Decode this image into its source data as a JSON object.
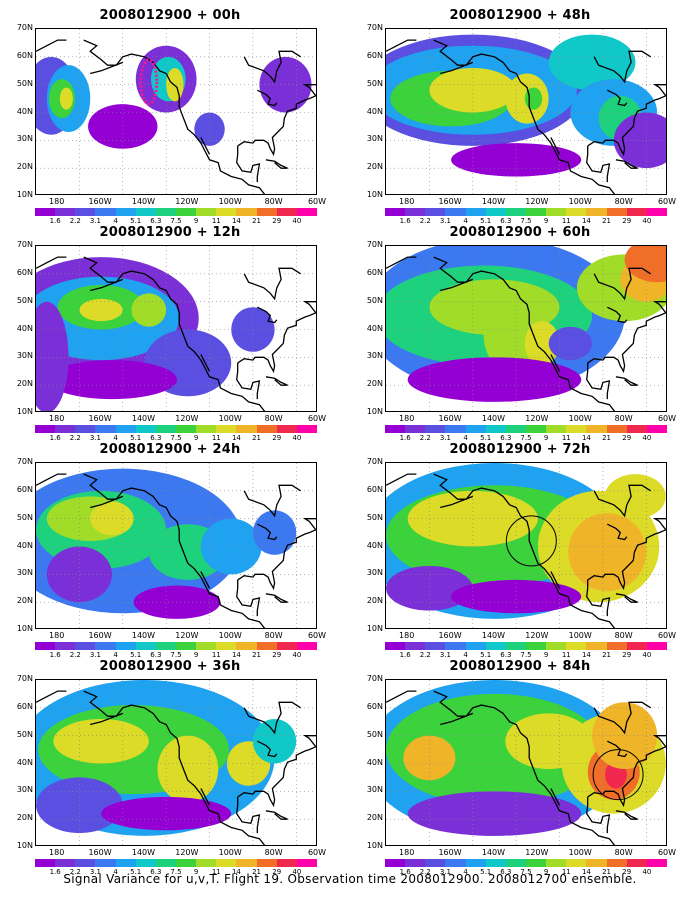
{
  "chart_data": {
    "type": "heatmap",
    "footer": "Signal Variance for u,v,T. Flight 19. Observation time 2008012900. 2008012700 ensemble.",
    "y_ticks": [
      "70N",
      "60N",
      "50N",
      "40N",
      "30N",
      "20N",
      "10N"
    ],
    "x_ticks": [
      "180",
      "160W",
      "140W",
      "120W",
      "100W",
      "80W",
      "60W"
    ],
    "colorbar_labels": [
      "1.6",
      "2.2",
      "3.1",
      "4",
      "5.1",
      "6.3",
      "7.5",
      "9",
      "11",
      "14",
      "21",
      "29",
      "40"
    ],
    "colorbar_colors": [
      "#9400d3",
      "#7b2fd6",
      "#5a4fe0",
      "#3c78f0",
      "#1fa2f0",
      "#10c8c8",
      "#1ed27d",
      "#3cd23c",
      "#a0dc28",
      "#dcdc28",
      "#f0b428",
      "#f06e28",
      "#f02850",
      "#ff00aa"
    ],
    "panels": [
      {
        "title": "2008012900 + 00h",
        "lead_hours": 0
      },
      {
        "title": "2008012900 + 48h",
        "lead_hours": 48
      },
      {
        "title": "2008012900 + 12h",
        "lead_hours": 12
      },
      {
        "title": "2008012900 + 60h",
        "lead_hours": 60
      },
      {
        "title": "2008012900 + 24h",
        "lead_hours": 24
      },
      {
        "title": "2008012900 + 72h",
        "lead_hours": 72
      },
      {
        "title": "2008012900 + 36h",
        "lead_hours": 36
      },
      {
        "title": "2008012900 + 84h",
        "lead_hours": 84
      }
    ]
  }
}
